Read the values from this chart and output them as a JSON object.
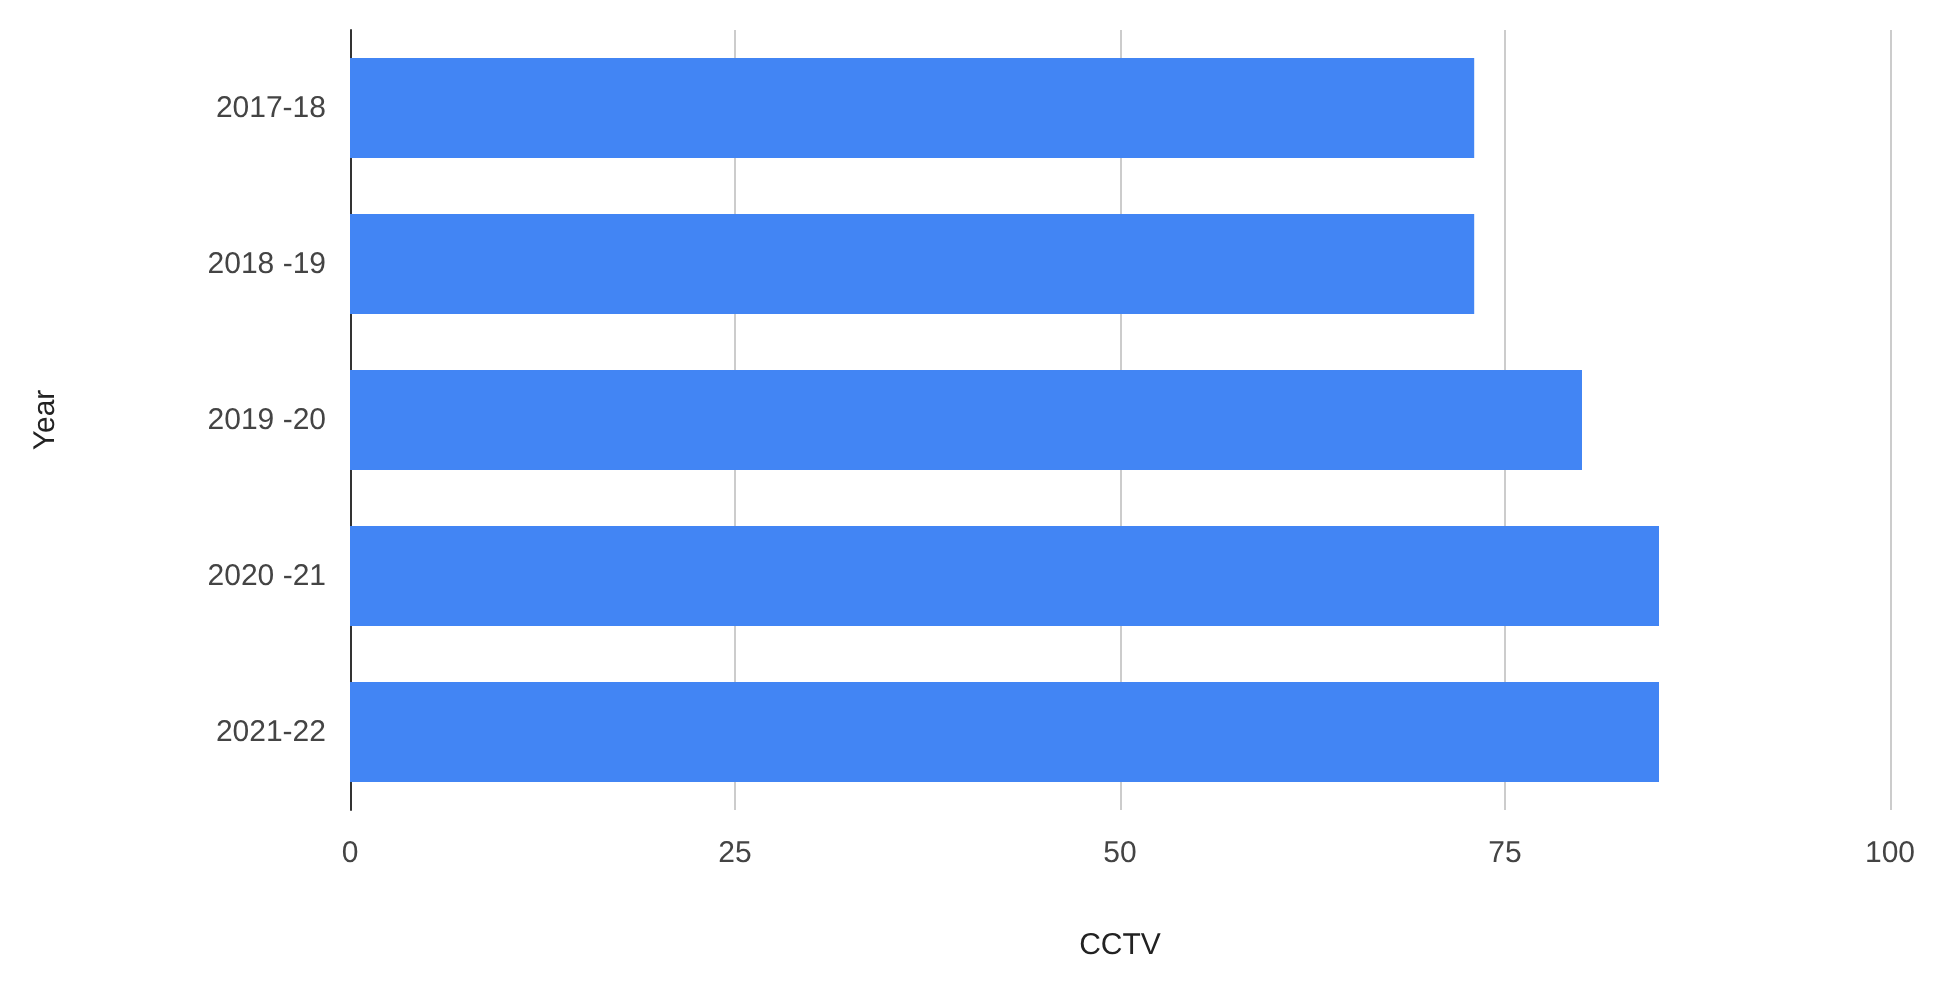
{
  "chart_data": {
    "type": "bar",
    "orientation": "horizontal",
    "xlabel": "CCTV",
    "ylabel": "Year",
    "categories": [
      "2017-18",
      "2018 -19",
      "2019 -20",
      "2020 -21",
      "2021-22"
    ],
    "values": [
      73,
      73,
      80,
      85,
      85
    ],
    "color": "#4285f4",
    "xlim": [
      0,
      100
    ],
    "xticks": [
      0,
      25,
      50,
      75,
      100
    ],
    "grid": "x"
  }
}
